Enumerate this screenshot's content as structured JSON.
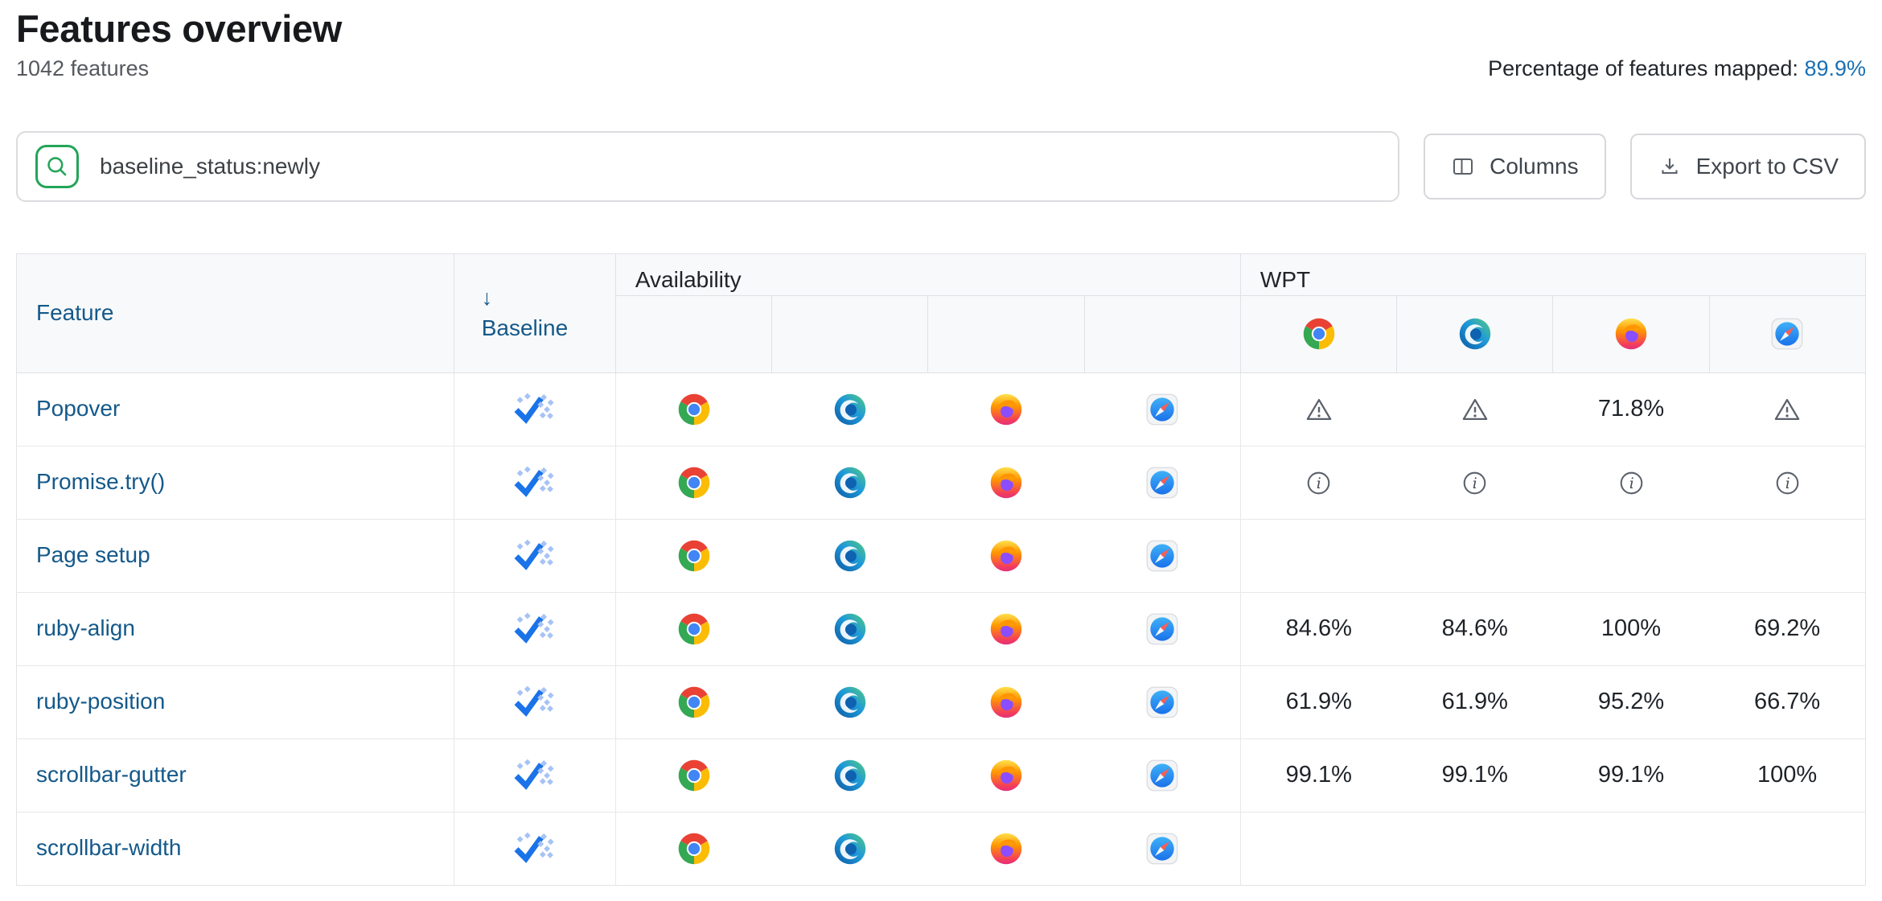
{
  "header": {
    "title": "Features overview",
    "subtitle": "1042 features",
    "mapped_label": "Percentage of features mapped:",
    "mapped_value": "89.9%"
  },
  "toolbar": {
    "search_value": "baseline_status:newly",
    "columns_label": "Columns",
    "export_label": "Export to CSV"
  },
  "table": {
    "feature_col": "Feature",
    "sort_arrow": "↓",
    "baseline_col": "Baseline",
    "groups": {
      "availability": "Availability",
      "wpt": "WPT"
    },
    "browsers": [
      "chrome",
      "edge",
      "firefox",
      "safari"
    ],
    "rows": [
      {
        "feature": "Popover",
        "baseline": "newly",
        "availability": [
          "chrome",
          "edge",
          "firefox",
          "safari"
        ],
        "wpt": [
          {
            "kind": "warning"
          },
          {
            "kind": "warning"
          },
          {
            "kind": "value",
            "value": "71.8%"
          },
          {
            "kind": "warning"
          }
        ]
      },
      {
        "feature": "Promise.try()",
        "baseline": "newly",
        "availability": [
          "chrome",
          "edge",
          "firefox",
          "safari"
        ],
        "wpt": [
          {
            "kind": "info"
          },
          {
            "kind": "info"
          },
          {
            "kind": "info"
          },
          {
            "kind": "info"
          }
        ]
      },
      {
        "feature": "Page setup",
        "baseline": "newly",
        "availability": [
          "chrome",
          "edge",
          "firefox",
          "safari"
        ],
        "wpt": [
          {
            "kind": "empty"
          },
          {
            "kind": "empty"
          },
          {
            "kind": "empty"
          },
          {
            "kind": "empty"
          }
        ]
      },
      {
        "feature": "ruby-align",
        "baseline": "newly",
        "availability": [
          "chrome",
          "edge",
          "firefox",
          "safari"
        ],
        "wpt": [
          {
            "kind": "value",
            "value": "84.6%"
          },
          {
            "kind": "value",
            "value": "84.6%"
          },
          {
            "kind": "value",
            "value": "100%"
          },
          {
            "kind": "value",
            "value": "69.2%"
          }
        ]
      },
      {
        "feature": "ruby-position",
        "baseline": "newly",
        "availability": [
          "chrome",
          "edge",
          "firefox",
          "safari"
        ],
        "wpt": [
          {
            "kind": "value",
            "value": "61.9%"
          },
          {
            "kind": "value",
            "value": "61.9%"
          },
          {
            "kind": "value",
            "value": "95.2%"
          },
          {
            "kind": "value",
            "value": "66.7%"
          }
        ]
      },
      {
        "feature": "scrollbar-gutter",
        "baseline": "newly",
        "availability": [
          "chrome",
          "edge",
          "firefox",
          "safari"
        ],
        "wpt": [
          {
            "kind": "value",
            "value": "99.1%"
          },
          {
            "kind": "value",
            "value": "99.1%"
          },
          {
            "kind": "value",
            "value": "99.1%"
          },
          {
            "kind": "value",
            "value": "100%"
          }
        ]
      },
      {
        "feature": "scrollbar-width",
        "baseline": "newly",
        "availability": [
          "chrome",
          "edge",
          "firefox",
          "safari"
        ],
        "wpt": [
          {
            "kind": "empty"
          },
          {
            "kind": "empty"
          },
          {
            "kind": "empty"
          },
          {
            "kind": "empty"
          }
        ]
      }
    ]
  },
  "colors": {
    "link": "#14598a",
    "mapped_link": "#1a70b4",
    "search_accent": "#23a559",
    "baseline_check": "#1a73e8",
    "baseline_dot": "#a7c3f5"
  }
}
